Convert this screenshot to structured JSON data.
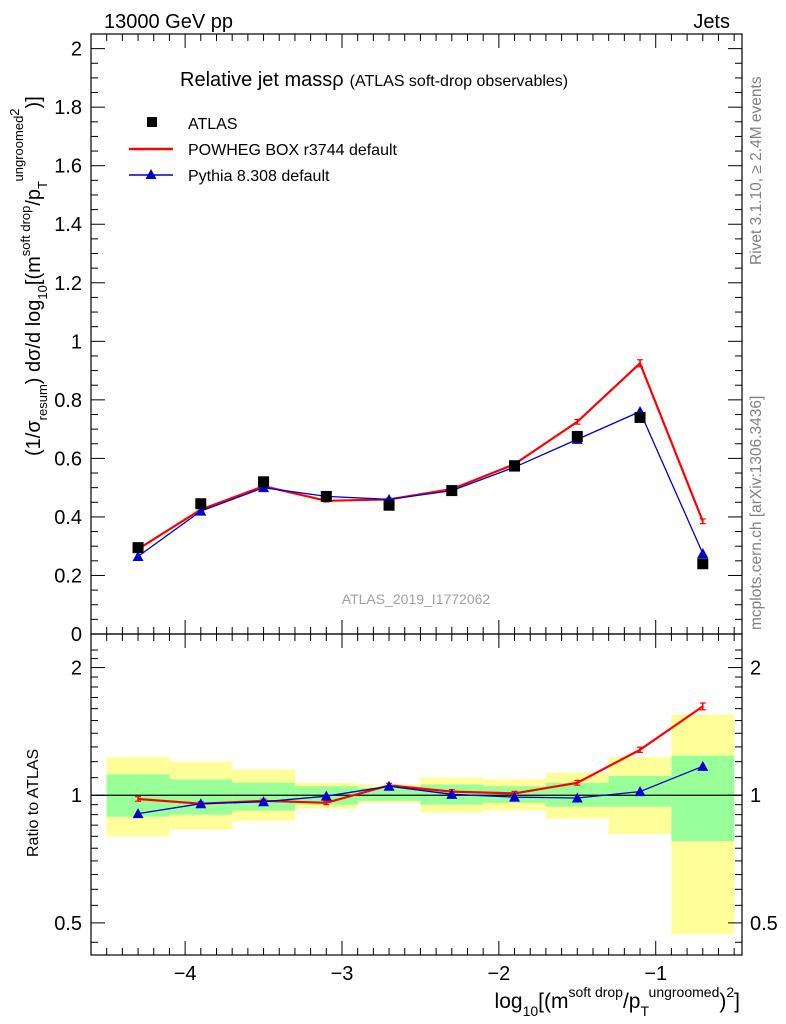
{
  "header": {
    "left": "13000 GeV pp",
    "right": "Jets"
  },
  "side": {
    "rivet": "Rivet 3.1.10, ≥ 2.4M events",
    "mcplots": "mcplots.cern.ch [arXiv:1306.3436]"
  },
  "colors": {
    "data": "#000000",
    "powheg": "#ff0000",
    "pythia": "#0000cc",
    "band_inner": "#99ff99",
    "band_outer": "#ffff99"
  },
  "chart_data": {
    "type": "line",
    "title": "Relative jet massρ",
    "subtitle": "(ATLAS soft-drop observables)",
    "watermark": "ATLAS_2019_I1772062",
    "ylabel_main": {
      "pre": "(1/σ",
      "resum": "resum",
      "mid": ") dσ/d log",
      "ten": "10",
      "b1": "[(m",
      "sd": "soft drop",
      "slash": "/p",
      "T": "T",
      "ug": "ungroomed",
      "two": "2",
      "end": ")]"
    },
    "ylabel_ratio": "Ratio to ATLAS",
    "xlabel": {
      "log": "log",
      "ten": "10",
      "b1": "[(m",
      "sd": "soft drop",
      "slash": "/p",
      "T": "T",
      "ug": "ungroomed",
      "close": ")",
      "two": "2",
      "end": "]"
    },
    "xlim": [
      -4.6,
      -0.45
    ],
    "ylim_main": [
      0,
      2.05
    ],
    "ylim_ratio": [
      0.42,
      2.4
    ],
    "ratio_log_scale": true,
    "x_ticks": [
      -4,
      -3,
      -2,
      -1
    ],
    "x_tick_labels": [
      "−4",
      "−3",
      "−2",
      "−1"
    ],
    "y_ticks_main": [
      0,
      0.2,
      0.4,
      0.6,
      0.8,
      1,
      1.2,
      1.4,
      1.6,
      1.8,
      2
    ],
    "y_tick_labels_main": [
      "0",
      "0.2",
      "0.4",
      "0.6",
      "0.8",
      "1",
      "1.2",
      "1.4",
      "1.6",
      "1.8",
      "2"
    ],
    "y_ticks_ratio": [
      0.5,
      1,
      2
    ],
    "y_tick_labels_ratio": [
      "0.5",
      "1",
      "2"
    ],
    "bin_edges": [
      -4.5,
      -4.1,
      -3.7,
      -3.3,
      -2.9,
      -2.5,
      -2.1,
      -1.7,
      -1.3,
      -0.9,
      -0.5
    ],
    "x": [
      -4.3,
      -3.9,
      -3.5,
      -3.1,
      -2.7,
      -2.3,
      -1.9,
      -1.5,
      -1.1,
      -0.7
    ],
    "series": [
      {
        "name": "ATLAS",
        "style": "marker",
        "values": [
          0.295,
          0.445,
          0.52,
          0.47,
          0.44,
          0.49,
          0.575,
          0.675,
          0.74,
          0.24
        ]
      },
      {
        "name": "POWHEG BOX r3744 default",
        "style": "line",
        "values": [
          0.29,
          0.425,
          0.505,
          0.455,
          0.46,
          0.495,
          0.58,
          0.725,
          0.925,
          0.385
        ],
        "errors": [
          0.004,
          0.004,
          0.004,
          0.004,
          0.004,
          0.004,
          0.006,
          0.008,
          0.012,
          0.008
        ]
      },
      {
        "name": "Pythia 8.308 default",
        "style": "line-triangle",
        "values": [
          0.265,
          0.42,
          0.5,
          0.47,
          0.46,
          0.49,
          0.57,
          0.665,
          0.76,
          0.275
        ]
      }
    ],
    "ratio": {
      "powheg": [
        0.98,
        0.955,
        0.97,
        0.96,
        1.055,
        1.02,
        1.01,
        1.07,
        1.28,
        1.62
      ],
      "powheg_err": [
        0.012,
        0.01,
        0.009,
        0.01,
        0.012,
        0.011,
        0.011,
        0.014,
        0.018,
        0.03
      ],
      "pythia": [
        0.905,
        0.955,
        0.965,
        0.995,
        1.05,
        1.005,
        0.99,
        0.985,
        1.02,
        1.17
      ],
      "band_inner": [
        [
          0.89,
          1.12
        ],
        [
          0.9,
          1.09
        ],
        [
          0.92,
          1.07
        ],
        [
          0.95,
          1.05
        ],
        [
          0.97,
          1.04
        ],
        [
          0.95,
          1.06
        ],
        [
          0.96,
          1.05
        ],
        [
          0.94,
          1.07
        ],
        [
          0.94,
          1.11
        ],
        [
          0.78,
          1.24
        ]
      ],
      "band_outer": [
        [
          0.8,
          1.23
        ],
        [
          0.83,
          1.2
        ],
        [
          0.87,
          1.15
        ],
        [
          0.93,
          1.07
        ],
        [
          0.96,
          1.06
        ],
        [
          0.91,
          1.1
        ],
        [
          0.92,
          1.09
        ],
        [
          0.88,
          1.13
        ],
        [
          0.81,
          1.23
        ],
        [
          0.47,
          1.55
        ]
      ]
    },
    "legend": {
      "position": "top-left"
    }
  }
}
